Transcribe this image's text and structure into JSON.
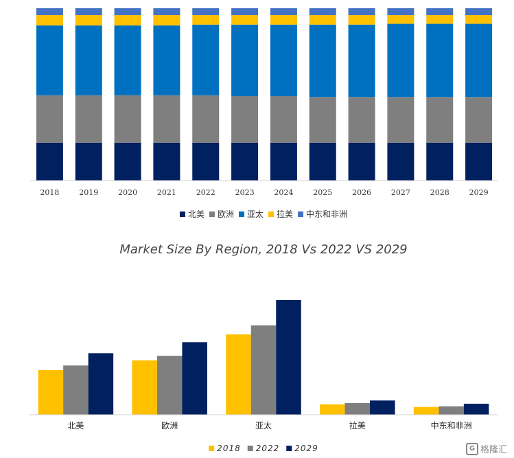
{
  "chart_data": [
    {
      "type": "bar",
      "stacked": true,
      "normalized": true,
      "categories": [
        "2018",
        "2019",
        "2020",
        "2021",
        "2022",
        "2023",
        "2024",
        "2025",
        "2026",
        "2027",
        "2028",
        "2029"
      ],
      "series": [
        {
          "name": "北美",
          "color": "#002060",
          "values": [
            22,
            22,
            22,
            22,
            22,
            22,
            22,
            22,
            22,
            22,
            22,
            22
          ]
        },
        {
          "name": "欧洲",
          "color": "#7f7f7f",
          "values": [
            27.5,
            27.5,
            27.5,
            27.5,
            27.5,
            27,
            27,
            26.5,
            26.5,
            26.5,
            26.5,
            26.5
          ]
        },
        {
          "name": "亚太",
          "color": "#0070c0",
          "values": [
            40.5,
            40.5,
            40.5,
            40.5,
            41,
            41.5,
            41.5,
            42,
            42,
            42.5,
            42.5,
            42.5
          ]
        },
        {
          "name": "拉美",
          "color": "#ffc000",
          "values": [
            6,
            6,
            6,
            6,
            5.5,
            5.5,
            5.5,
            5.5,
            5.5,
            5,
            5,
            5
          ]
        },
        {
          "name": "中东和非洲",
          "color": "#4472c4",
          "values": [
            4,
            4,
            4,
            4,
            4,
            4,
            4,
            4,
            4,
            4,
            4,
            4
          ]
        }
      ],
      "legend": "bottom",
      "grid": false
    },
    {
      "type": "bar",
      "title": "Market Size By Region, 2018 Vs 2022 VS 2029",
      "categories": [
        "北美",
        "欧洲",
        "亚太",
        "拉美",
        "中东和非洲"
      ],
      "series": [
        {
          "name": "2018",
          "color": "#ffc000",
          "values": [
            69,
            84,
            124,
            16,
            12
          ]
        },
        {
          "name": "2022",
          "color": "#7f7f7f",
          "values": [
            76,
            91,
            138,
            18,
            13
          ]
        },
        {
          "name": "2029",
          "color": "#002060",
          "values": [
            95,
            112,
            177,
            22,
            17
          ]
        }
      ],
      "ylim": [
        0,
        200
      ],
      "legend": "bottom",
      "grid": false
    }
  ],
  "watermark": {
    "label": "格隆汇",
    "icon": "g-logo-icon"
  }
}
